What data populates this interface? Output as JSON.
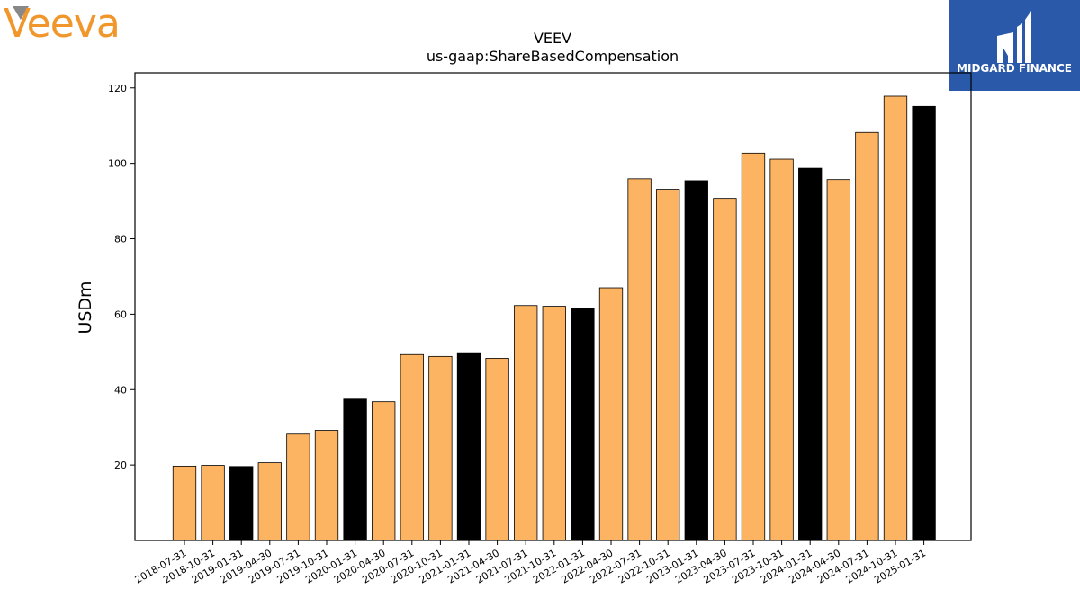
{
  "header": {
    "company_logo_text": "Veeva",
    "brand_name": "MIDGARD FINANCE"
  },
  "colors": {
    "regular_bar": "#fdb462",
    "highlight_bar": "#000000",
    "brand_blue": "#2a59aa",
    "veeva_orange": "#f0962a"
  },
  "chart_data": {
    "type": "bar",
    "title": "VEEV",
    "subtitle": "us-gaap:ShareBasedCompensation",
    "xlabel": "",
    "ylabel": "USDm",
    "ylim": [
      0,
      124
    ],
    "yticks": [
      20,
      40,
      60,
      80,
      100,
      120
    ],
    "grid": false,
    "legend": "none",
    "categories": [
      "2018-07-31",
      "2018-10-31",
      "2019-01-31",
      "2019-04-30",
      "2019-07-31",
      "2019-10-31",
      "2020-01-31",
      "2020-04-30",
      "2020-07-31",
      "2020-10-31",
      "2021-01-31",
      "2021-04-30",
      "2021-07-31",
      "2021-10-31",
      "2022-01-31",
      "2022-04-30",
      "2022-07-31",
      "2022-10-31",
      "2023-01-31",
      "2023-04-30",
      "2023-07-31",
      "2023-10-31",
      "2024-01-31",
      "2024-04-30",
      "2024-07-31",
      "2024-10-31",
      "2025-01-31"
    ],
    "values": [
      19.7,
      19.9,
      19.6,
      20.6,
      28.2,
      29.2,
      37.5,
      36.8,
      49.3,
      48.8,
      49.8,
      48.3,
      62.3,
      62.1,
      61.6,
      67.0,
      95.9,
      93.1,
      95.4,
      90.7,
      102.7,
      101.1,
      98.7,
      95.7,
      108.2,
      117.8,
      115.1
    ],
    "highlight": [
      false,
      false,
      true,
      false,
      false,
      false,
      true,
      false,
      false,
      false,
      true,
      false,
      false,
      false,
      true,
      false,
      false,
      false,
      true,
      false,
      false,
      false,
      true,
      false,
      false,
      false,
      true
    ]
  }
}
